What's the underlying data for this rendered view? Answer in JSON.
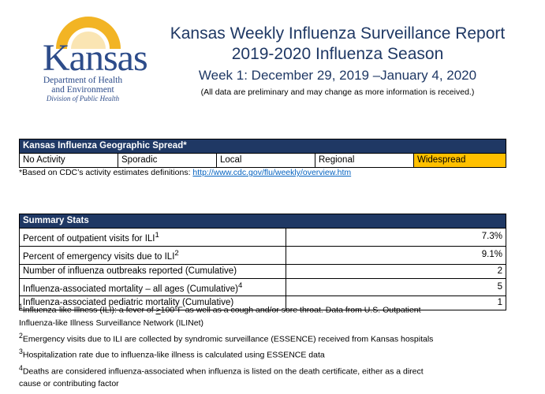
{
  "logo": {
    "word": "Kansas",
    "dept_line1": "Department of Health",
    "dept_line2": "and Environment",
    "dept_line3": "Division of Public Health",
    "brand_color": "#2d4c8a",
    "sun_color": "#f2b424"
  },
  "header": {
    "title": "Kansas Weekly Influenza Surveillance Report",
    "season": "2019-2020 Influenza Season",
    "week": "Week 1: December 29, 2019 –January 4, 2020",
    "disclaimer": "(All data are preliminary and may change as more information is received.)"
  },
  "spread": {
    "heading": "Kansas Influenza Geographic Spread*",
    "levels": [
      "No Activity",
      "Sporadic",
      "Local",
      "Regional",
      "Widespread"
    ],
    "active_level": "Widespread",
    "active_color": "#ffc000",
    "note_prefix": "*Based on CDC’s activity estimates definitions: ",
    "note_link": "http://www.cdc.gov/flu/weekly/overview.htm"
  },
  "summary": {
    "heading": "Summary Stats",
    "rows": [
      {
        "label": "Percent of outpatient visits for ILI",
        "sup": "1",
        "value": "7.3%"
      },
      {
        "label": "Percent of emergency visits due to ILI",
        "sup": "2",
        "value": "9.1%"
      },
      {
        "label": "Number of influenza outbreaks reported (Cumulative)",
        "sup": "",
        "value": "2"
      },
      {
        "label": "Influenza-associated mortality – all ages (Cumulative)",
        "sup": "4",
        "value": "5"
      },
      {
        "label": "Influenza-associated pediatric mortality (Cumulative)",
        "sup": "",
        "value": "1"
      }
    ]
  },
  "footnotes": {
    "n1_sup": "1",
    "n1_a": "Influenza-like Illness (ILI): a fever of ",
    "n1_b": ">",
    "n1_c": "100°F as well as a cough and/or sore throat. Data from U.S. Outpatient",
    "n1_d": "Influenza-like Illness Surveillance Network (ILINet)",
    "n2_sup": "2",
    "n2": "Emergency visits due to ILI are collected by syndromic surveillance (ESSENCE) received from Kansas hospitals",
    "n3_sup": "3",
    "n3": "Hospitalization rate due to influenza-like illness is calculated using ESSENCE data",
    "n4_sup": "4",
    "n4_a": "Deaths are considered influenza-associated when influenza is listed on the death certificate, either as a direct",
    "n4_b": "cause or contributing factor"
  },
  "colors": {
    "header_bg": "#1f3864",
    "title_color": "#1f3864",
    "link_color": "#0563c1"
  }
}
